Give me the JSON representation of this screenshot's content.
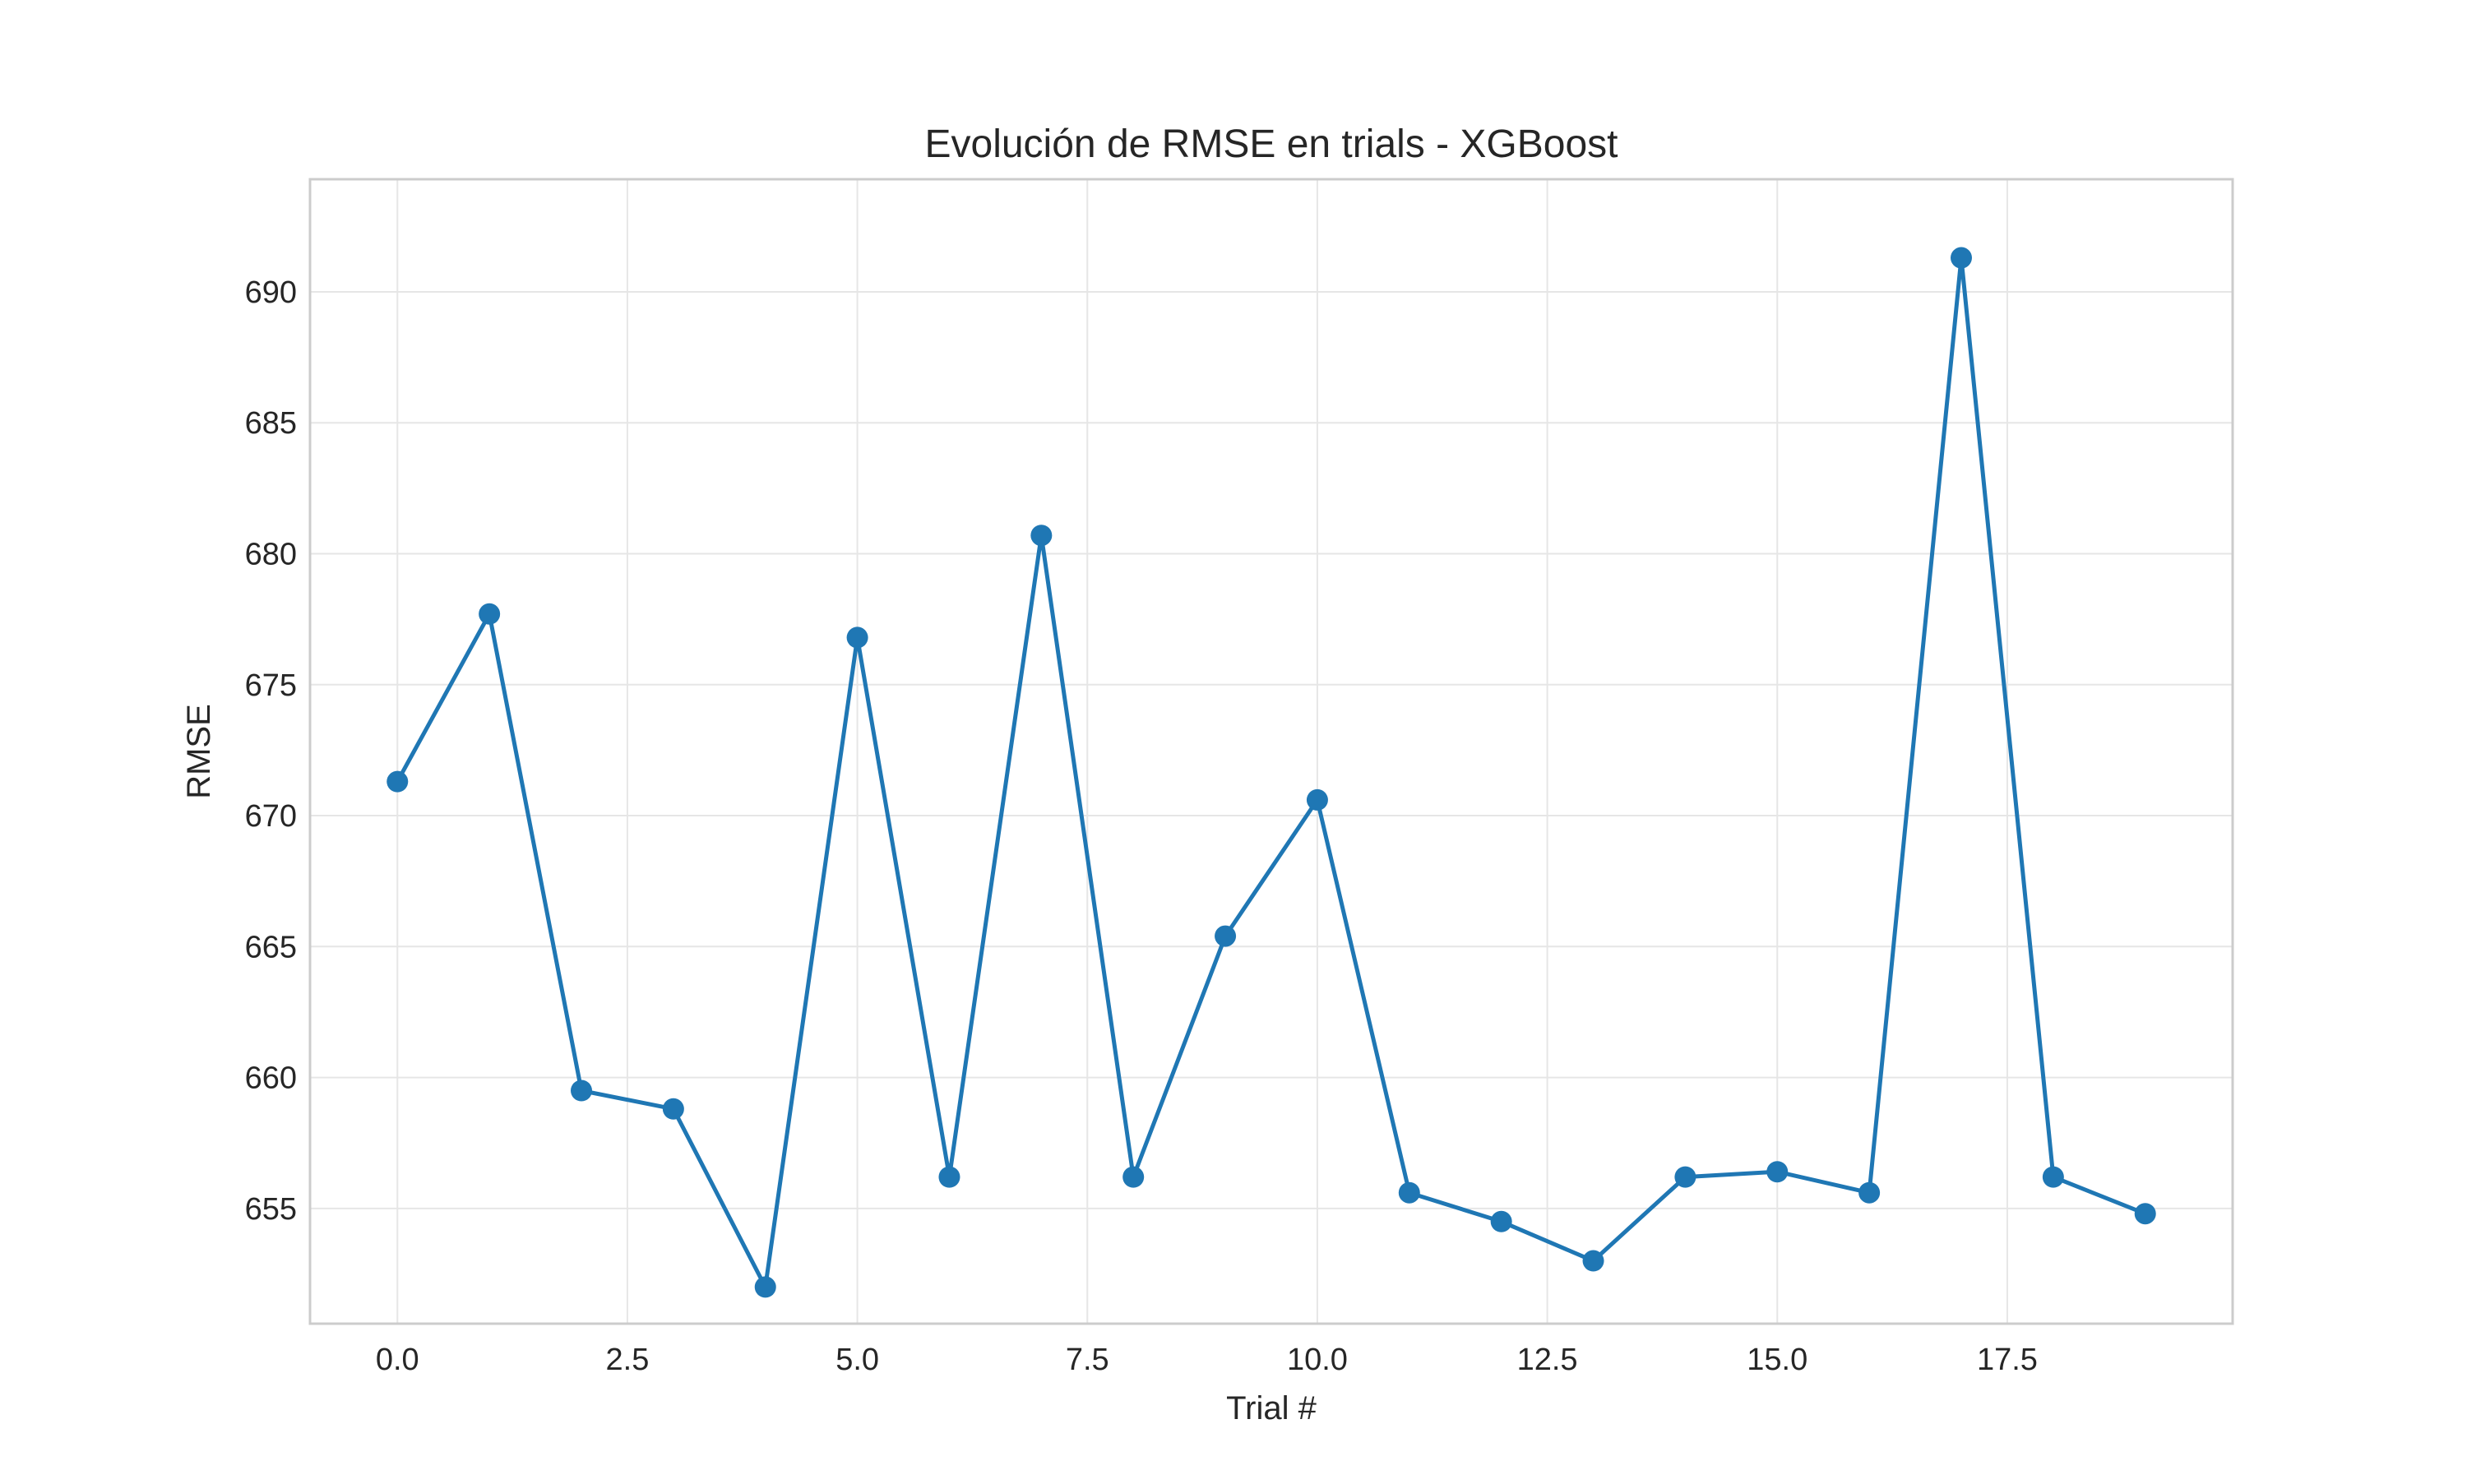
{
  "chart_data": {
    "type": "line",
    "title": "Evolución de RMSE en trials - XGBoost",
    "xlabel": "Trial #",
    "ylabel": "RMSE",
    "xlim": [
      -0.95,
      19.95
    ],
    "ylim": [
      650.6,
      694.3
    ],
    "x_ticks": [
      0.0,
      2.5,
      5.0,
      7.5,
      10.0,
      12.5,
      15.0,
      17.5
    ],
    "x_tick_labels": [
      "0.0",
      "2.5",
      "5.0",
      "7.5",
      "10.0",
      "12.5",
      "15.0",
      "17.5"
    ],
    "y_ticks": [
      655,
      660,
      665,
      670,
      675,
      680,
      685,
      690
    ],
    "y_tick_labels": [
      "655",
      "660",
      "665",
      "670",
      "675",
      "680",
      "685",
      "690"
    ],
    "grid": true,
    "legend": "none",
    "series": [
      {
        "color": "#1f77b4",
        "marker": "circle",
        "x": [
          0,
          1,
          2,
          3,
          4,
          5,
          6,
          7,
          8,
          9,
          10,
          11,
          12,
          13,
          14,
          15,
          16,
          17,
          18,
          19
        ],
        "values": [
          671.3,
          677.7,
          659.5,
          658.8,
          652.0,
          676.8,
          656.2,
          680.7,
          656.2,
          665.4,
          670.6,
          655.6,
          654.5,
          653.0,
          656.2,
          656.4,
          655.6,
          691.3,
          656.2,
          654.8
        ]
      }
    ]
  }
}
